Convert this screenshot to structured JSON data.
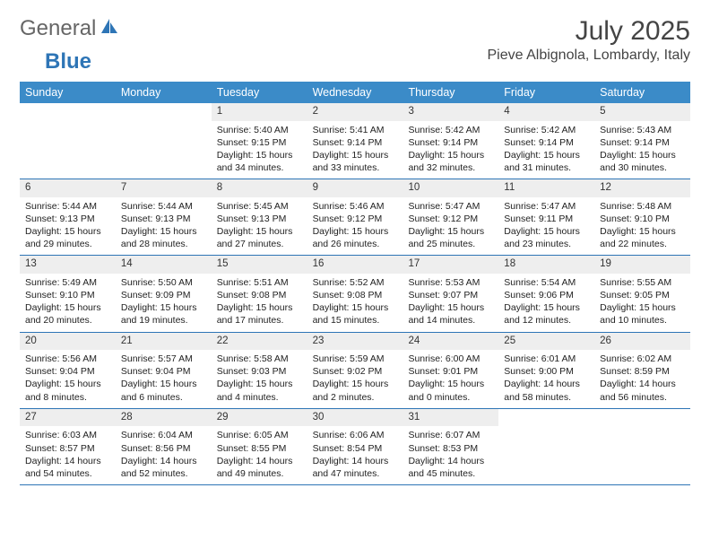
{
  "logo": {
    "text1": "General",
    "text2": "Blue"
  },
  "title": "July 2025",
  "location": "Pieve Albignola, Lombardy, Italy",
  "colors": {
    "header_bg": "#3b8bc8",
    "header_text": "#ffffff",
    "daynum_bg": "#eeeeee",
    "week_border": "#2e75b6",
    "body_text": "#222222",
    "title_text": "#444444",
    "logo_gray": "#666666",
    "logo_blue": "#2e75b6",
    "page_bg": "#ffffff"
  },
  "typography": {
    "month_title_fontsize": 30,
    "location_fontsize": 16,
    "dayname_fontsize": 12.5,
    "daynum_fontsize": 11.5,
    "cell_fontsize": 10.5,
    "font_family": "Arial"
  },
  "day_names": [
    "Sunday",
    "Monday",
    "Tuesday",
    "Wednesday",
    "Thursday",
    "Friday",
    "Saturday"
  ],
  "weeks": [
    [
      null,
      null,
      {
        "n": "1",
        "sunrise": "Sunrise: 5:40 AM",
        "sunset": "Sunset: 9:15 PM",
        "daylight": "Daylight: 15 hours and 34 minutes."
      },
      {
        "n": "2",
        "sunrise": "Sunrise: 5:41 AM",
        "sunset": "Sunset: 9:14 PM",
        "daylight": "Daylight: 15 hours and 33 minutes."
      },
      {
        "n": "3",
        "sunrise": "Sunrise: 5:42 AM",
        "sunset": "Sunset: 9:14 PM",
        "daylight": "Daylight: 15 hours and 32 minutes."
      },
      {
        "n": "4",
        "sunrise": "Sunrise: 5:42 AM",
        "sunset": "Sunset: 9:14 PM",
        "daylight": "Daylight: 15 hours and 31 minutes."
      },
      {
        "n": "5",
        "sunrise": "Sunrise: 5:43 AM",
        "sunset": "Sunset: 9:14 PM",
        "daylight": "Daylight: 15 hours and 30 minutes."
      }
    ],
    [
      {
        "n": "6",
        "sunrise": "Sunrise: 5:44 AM",
        "sunset": "Sunset: 9:13 PM",
        "daylight": "Daylight: 15 hours and 29 minutes."
      },
      {
        "n": "7",
        "sunrise": "Sunrise: 5:44 AM",
        "sunset": "Sunset: 9:13 PM",
        "daylight": "Daylight: 15 hours and 28 minutes."
      },
      {
        "n": "8",
        "sunrise": "Sunrise: 5:45 AM",
        "sunset": "Sunset: 9:13 PM",
        "daylight": "Daylight: 15 hours and 27 minutes."
      },
      {
        "n": "9",
        "sunrise": "Sunrise: 5:46 AM",
        "sunset": "Sunset: 9:12 PM",
        "daylight": "Daylight: 15 hours and 26 minutes."
      },
      {
        "n": "10",
        "sunrise": "Sunrise: 5:47 AM",
        "sunset": "Sunset: 9:12 PM",
        "daylight": "Daylight: 15 hours and 25 minutes."
      },
      {
        "n": "11",
        "sunrise": "Sunrise: 5:47 AM",
        "sunset": "Sunset: 9:11 PM",
        "daylight": "Daylight: 15 hours and 23 minutes."
      },
      {
        "n": "12",
        "sunrise": "Sunrise: 5:48 AM",
        "sunset": "Sunset: 9:10 PM",
        "daylight": "Daylight: 15 hours and 22 minutes."
      }
    ],
    [
      {
        "n": "13",
        "sunrise": "Sunrise: 5:49 AM",
        "sunset": "Sunset: 9:10 PM",
        "daylight": "Daylight: 15 hours and 20 minutes."
      },
      {
        "n": "14",
        "sunrise": "Sunrise: 5:50 AM",
        "sunset": "Sunset: 9:09 PM",
        "daylight": "Daylight: 15 hours and 19 minutes."
      },
      {
        "n": "15",
        "sunrise": "Sunrise: 5:51 AM",
        "sunset": "Sunset: 9:08 PM",
        "daylight": "Daylight: 15 hours and 17 minutes."
      },
      {
        "n": "16",
        "sunrise": "Sunrise: 5:52 AM",
        "sunset": "Sunset: 9:08 PM",
        "daylight": "Daylight: 15 hours and 15 minutes."
      },
      {
        "n": "17",
        "sunrise": "Sunrise: 5:53 AM",
        "sunset": "Sunset: 9:07 PM",
        "daylight": "Daylight: 15 hours and 14 minutes."
      },
      {
        "n": "18",
        "sunrise": "Sunrise: 5:54 AM",
        "sunset": "Sunset: 9:06 PM",
        "daylight": "Daylight: 15 hours and 12 minutes."
      },
      {
        "n": "19",
        "sunrise": "Sunrise: 5:55 AM",
        "sunset": "Sunset: 9:05 PM",
        "daylight": "Daylight: 15 hours and 10 minutes."
      }
    ],
    [
      {
        "n": "20",
        "sunrise": "Sunrise: 5:56 AM",
        "sunset": "Sunset: 9:04 PM",
        "daylight": "Daylight: 15 hours and 8 minutes."
      },
      {
        "n": "21",
        "sunrise": "Sunrise: 5:57 AM",
        "sunset": "Sunset: 9:04 PM",
        "daylight": "Daylight: 15 hours and 6 minutes."
      },
      {
        "n": "22",
        "sunrise": "Sunrise: 5:58 AM",
        "sunset": "Sunset: 9:03 PM",
        "daylight": "Daylight: 15 hours and 4 minutes."
      },
      {
        "n": "23",
        "sunrise": "Sunrise: 5:59 AM",
        "sunset": "Sunset: 9:02 PM",
        "daylight": "Daylight: 15 hours and 2 minutes."
      },
      {
        "n": "24",
        "sunrise": "Sunrise: 6:00 AM",
        "sunset": "Sunset: 9:01 PM",
        "daylight": "Daylight: 15 hours and 0 minutes."
      },
      {
        "n": "25",
        "sunrise": "Sunrise: 6:01 AM",
        "sunset": "Sunset: 9:00 PM",
        "daylight": "Daylight: 14 hours and 58 minutes."
      },
      {
        "n": "26",
        "sunrise": "Sunrise: 6:02 AM",
        "sunset": "Sunset: 8:59 PM",
        "daylight": "Daylight: 14 hours and 56 minutes."
      }
    ],
    [
      {
        "n": "27",
        "sunrise": "Sunrise: 6:03 AM",
        "sunset": "Sunset: 8:57 PM",
        "daylight": "Daylight: 14 hours and 54 minutes."
      },
      {
        "n": "28",
        "sunrise": "Sunrise: 6:04 AM",
        "sunset": "Sunset: 8:56 PM",
        "daylight": "Daylight: 14 hours and 52 minutes."
      },
      {
        "n": "29",
        "sunrise": "Sunrise: 6:05 AM",
        "sunset": "Sunset: 8:55 PM",
        "daylight": "Daylight: 14 hours and 49 minutes."
      },
      {
        "n": "30",
        "sunrise": "Sunrise: 6:06 AM",
        "sunset": "Sunset: 8:54 PM",
        "daylight": "Daylight: 14 hours and 47 minutes."
      },
      {
        "n": "31",
        "sunrise": "Sunrise: 6:07 AM",
        "sunset": "Sunset: 8:53 PM",
        "daylight": "Daylight: 14 hours and 45 minutes."
      },
      null,
      null
    ]
  ]
}
